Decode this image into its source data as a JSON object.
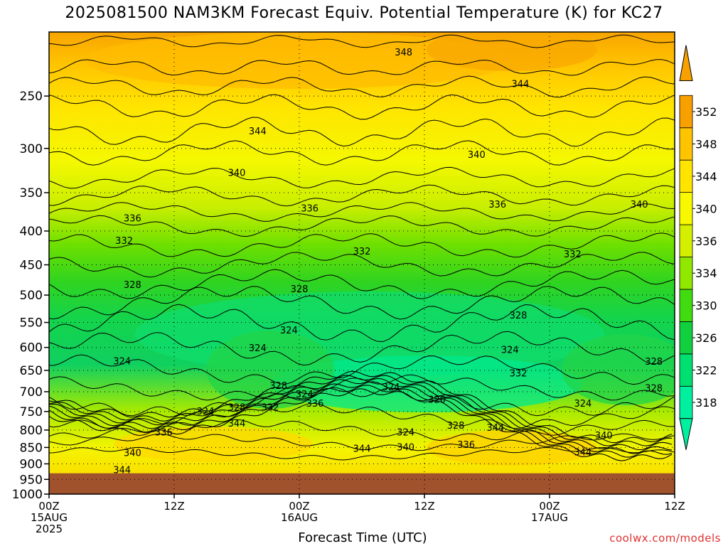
{
  "chart_data": {
    "type": "heatmap",
    "title": "2025081500 NAM3KM Forecast Equiv. Potential Temperature (K) for KC27",
    "xlabel": "Forecast Time (UTC)",
    "ylabel": "",
    "y_axis_scale": "log-pressure, inverted",
    "ylim": [
      1000,
      200
    ],
    "y_ticks": [
      250,
      300,
      350,
      400,
      450,
      500,
      550,
      600,
      650,
      700,
      750,
      800,
      850,
      900,
      950,
      1000
    ],
    "x_ticks": [
      {
        "hour": 0,
        "labels": [
          "00Z",
          "15AUG",
          "2025"
        ]
      },
      {
        "hour": 12,
        "labels": [
          "12Z"
        ]
      },
      {
        "hour": 24,
        "labels": [
          "00Z",
          "16AUG"
        ]
      },
      {
        "hour": 36,
        "labels": [
          "12Z"
        ]
      },
      {
        "hour": 48,
        "labels": [
          "00Z",
          "17AUG"
        ]
      },
      {
        "hour": 60,
        "labels": [
          "12Z"
        ]
      }
    ],
    "xlim": [
      0,
      60
    ],
    "grid": true,
    "colorbar": {
      "levels": [
        318,
        322,
        326,
        330,
        334,
        336,
        340,
        344,
        348,
        352
      ],
      "colors": [
        "#00f0a0",
        "#00e070",
        "#10d040",
        "#40dc10",
        "#90e800",
        "#d4f000",
        "#f8f800",
        "#ffe400",
        "#ffc400",
        "#f8a000"
      ],
      "extend": "both"
    },
    "ground_below_hpa": 930,
    "ground_color": "#a0522d",
    "contour_labels": [
      {
        "value": "348",
        "hour": 34.0,
        "hpa": 215
      },
      {
        "value": "344",
        "hour": 45.2,
        "hpa": 240
      },
      {
        "value": "344",
        "hour": 20.0,
        "hpa": 283
      },
      {
        "value": "340",
        "hour": 41.0,
        "hpa": 307
      },
      {
        "value": "340",
        "hour": 18.0,
        "hpa": 327
      },
      {
        "value": "340",
        "hour": 56.6,
        "hpa": 365
      },
      {
        "value": "336",
        "hour": 25.0,
        "hpa": 370
      },
      {
        "value": "336",
        "hour": 43.0,
        "hpa": 365
      },
      {
        "value": "336",
        "hour": 8.0,
        "hpa": 383
      },
      {
        "value": "332",
        "hour": 7.2,
        "hpa": 414
      },
      {
        "value": "332",
        "hour": 30.0,
        "hpa": 430
      },
      {
        "value": "332",
        "hour": 50.2,
        "hpa": 434
      },
      {
        "value": "328",
        "hour": 8.0,
        "hpa": 483
      },
      {
        "value": "328",
        "hour": 24.0,
        "hpa": 490
      },
      {
        "value": "328",
        "hour": 45.0,
        "hpa": 537
      },
      {
        "value": "324",
        "hour": 23.0,
        "hpa": 566
      },
      {
        "value": "324",
        "hour": 20.0,
        "hpa": 602
      },
      {
        "value": "324",
        "hour": 44.2,
        "hpa": 606
      },
      {
        "value": "324",
        "hour": 7.0,
        "hpa": 630
      },
      {
        "value": "332",
        "hour": 45.0,
        "hpa": 657
      },
      {
        "value": "328",
        "hour": 58.0,
        "hpa": 631
      },
      {
        "value": "328",
        "hour": 22.0,
        "hpa": 686
      },
      {
        "value": "324",
        "hour": 32.8,
        "hpa": 690
      },
      {
        "value": "324",
        "hour": 24.5,
        "hpa": 707
      },
      {
        "value": "328",
        "hour": 58.0,
        "hpa": 692
      },
      {
        "value": "320",
        "hour": 37.2,
        "hpa": 720
      },
      {
        "value": "336",
        "hour": 25.5,
        "hpa": 730
      },
      {
        "value": "328",
        "hour": 18.0,
        "hpa": 740
      },
      {
        "value": "332",
        "hour": 21.2,
        "hpa": 740
      },
      {
        "value": "324",
        "hour": 51.2,
        "hpa": 730
      },
      {
        "value": "324",
        "hour": 15.0,
        "hpa": 750
      },
      {
        "value": "344",
        "hour": 18.0,
        "hpa": 783
      },
      {
        "value": "328",
        "hour": 39.0,
        "hpa": 788
      },
      {
        "value": "344",
        "hour": 42.8,
        "hpa": 794
      },
      {
        "value": "324",
        "hour": 34.2,
        "hpa": 807
      },
      {
        "value": "336",
        "hour": 11.0,
        "hpa": 807
      },
      {
        "value": "340",
        "hour": 53.2,
        "hpa": 816
      },
      {
        "value": "336",
        "hour": 40.0,
        "hpa": 843
      },
      {
        "value": "344",
        "hour": 30.0,
        "hpa": 855
      },
      {
        "value": "340",
        "hour": 34.2,
        "hpa": 850
      },
      {
        "value": "344",
        "hour": 51.2,
        "hpa": 865
      },
      {
        "value": "340",
        "hour": 8.0,
        "hpa": 867
      },
      {
        "value": "344",
        "hour": 7.0,
        "hpa": 920
      }
    ]
  },
  "credit": "coolwx.com/models"
}
